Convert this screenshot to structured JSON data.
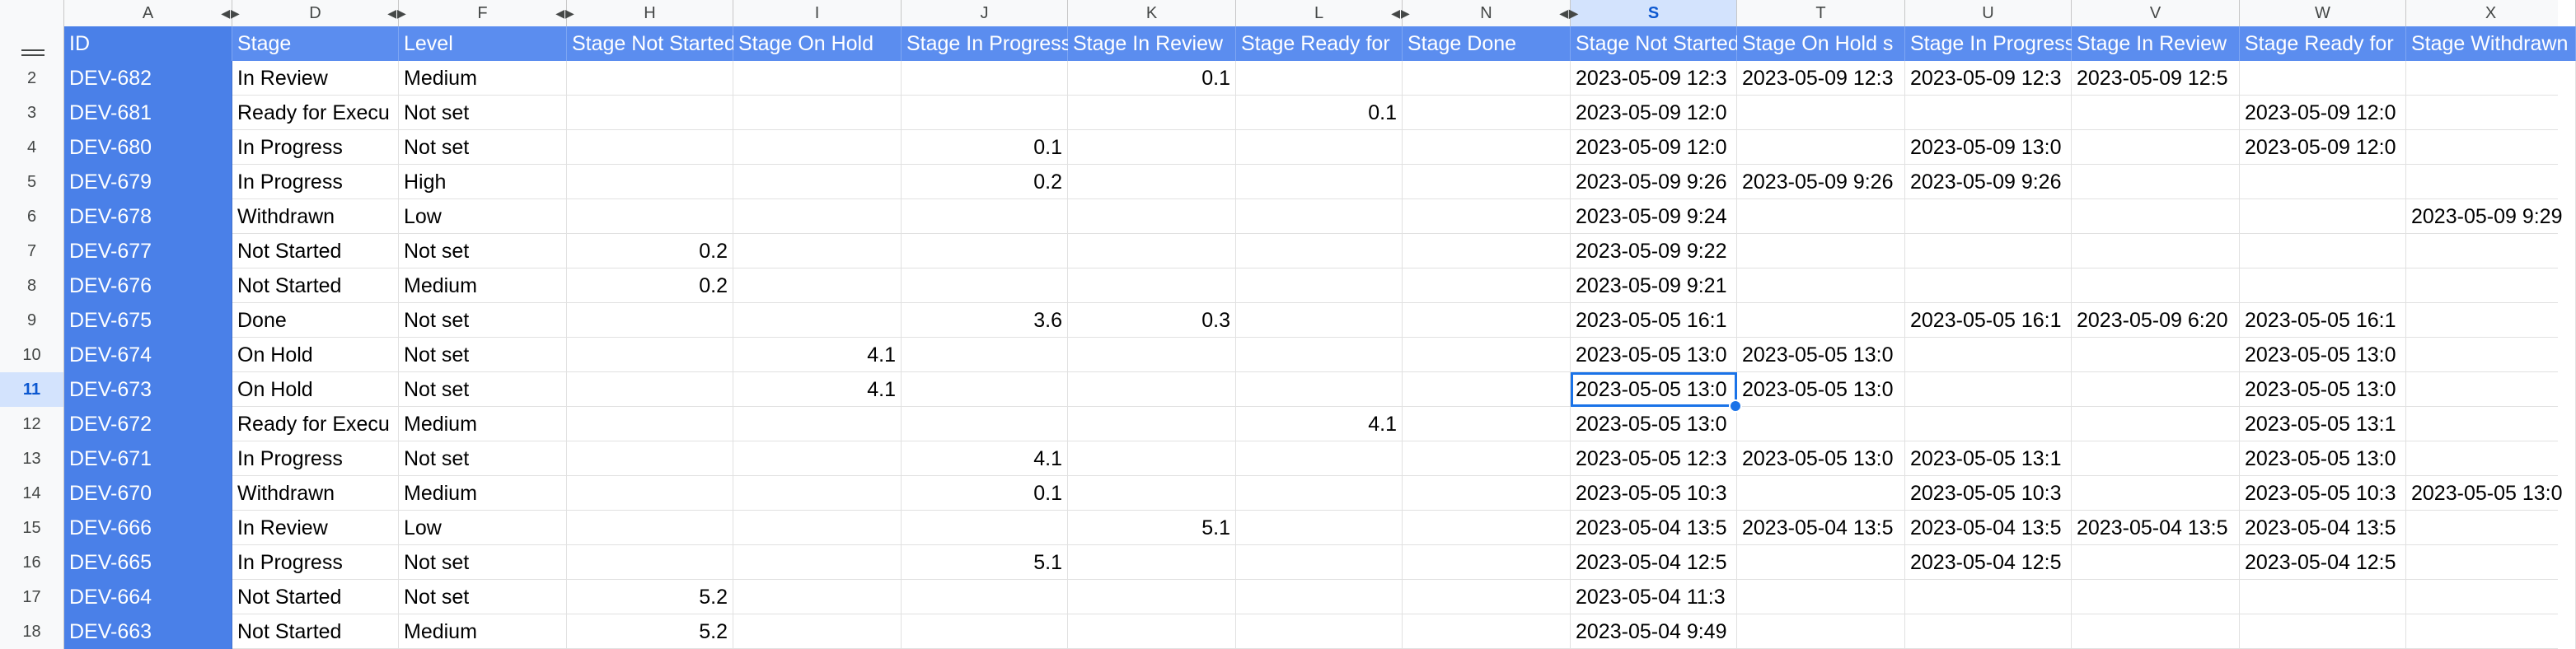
{
  "sheet": {
    "active_cell": "S11",
    "columns": [
      "A",
      "D",
      "F",
      "H",
      "I",
      "J",
      "K",
      "L",
      "N",
      "S",
      "T",
      "U",
      "V",
      "W",
      "X"
    ],
    "selected_column": "S",
    "selected_row": "11",
    "header_row": {
      "number": "1",
      "cells": [
        "ID",
        "Stage",
        "Level",
        "Stage Not Started",
        "Stage On Hold",
        "Stage In Progress",
        "Stage In Review",
        "Stage Ready for",
        "Stage Done",
        "Stage Not Started",
        "Stage On Hold s",
        "Stage In Progress",
        "Stage In Review",
        "Stage Ready for",
        "Stage Withdrawn"
      ]
    },
    "rows": [
      {
        "num": "2",
        "cells": [
          "DEV-682",
          "In Review",
          "Medium",
          "",
          "",
          "",
          "0.1",
          "",
          "",
          "2023-05-09 12:3",
          "2023-05-09 12:3",
          "2023-05-09 12:3",
          "2023-05-09 12:5",
          "",
          ""
        ]
      },
      {
        "num": "3",
        "cells": [
          "DEV-681",
          "Ready for Execu",
          "Not set",
          "",
          "",
          "",
          "",
          "0.1",
          "",
          "2023-05-09 12:0",
          "",
          "",
          "",
          "2023-05-09 12:0",
          ""
        ]
      },
      {
        "num": "4",
        "cells": [
          "DEV-680",
          "In Progress",
          "Not set",
          "",
          "",
          "0.1",
          "",
          "",
          "",
          "2023-05-09 12:0",
          "",
          "2023-05-09 13:0",
          "",
          "2023-05-09 12:0",
          ""
        ]
      },
      {
        "num": "5",
        "cells": [
          "DEV-679",
          "In Progress",
          "High",
          "",
          "",
          "0.2",
          "",
          "",
          "",
          "2023-05-09 9:26",
          "2023-05-09 9:26",
          "2023-05-09 9:26",
          "",
          "",
          ""
        ]
      },
      {
        "num": "6",
        "cells": [
          "DEV-678",
          "Withdrawn",
          "Low",
          "",
          "",
          "",
          "",
          "",
          "",
          "2023-05-09 9:24",
          "",
          "",
          "",
          "",
          "2023-05-09 9:29"
        ]
      },
      {
        "num": "7",
        "cells": [
          "DEV-677",
          "Not Started",
          "Not set",
          "0.2",
          "",
          "",
          "",
          "",
          "",
          "2023-05-09 9:22",
          "",
          "",
          "",
          "",
          ""
        ]
      },
      {
        "num": "8",
        "cells": [
          "DEV-676",
          "Not Started",
          "Medium",
          "0.2",
          "",
          "",
          "",
          "",
          "",
          "2023-05-09 9:21",
          "",
          "",
          "",
          "",
          ""
        ]
      },
      {
        "num": "9",
        "cells": [
          "DEV-675",
          "Done",
          "Not set",
          "",
          "",
          "3.6",
          "0.3",
          "",
          "",
          "2023-05-05 16:1",
          "",
          "2023-05-05 16:1",
          "2023-05-09 6:20",
          "2023-05-05 16:1",
          ""
        ]
      },
      {
        "num": "10",
        "cells": [
          "DEV-674",
          "On Hold",
          "Not set",
          "",
          "4.1",
          "",
          "",
          "",
          "",
          "2023-05-05 13:0",
          "2023-05-05 13:0",
          "",
          "",
          "2023-05-05 13:0",
          ""
        ]
      },
      {
        "num": "11",
        "cells": [
          "DEV-673",
          "On Hold",
          "Not set",
          "",
          "4.1",
          "",
          "",
          "",
          "",
          "2023-05-05 13:0",
          "2023-05-05 13:0",
          "",
          "",
          "2023-05-05 13:0",
          ""
        ]
      },
      {
        "num": "12",
        "cells": [
          "DEV-672",
          "Ready for Execu",
          "Medium",
          "",
          "",
          "",
          "",
          "4.1",
          "",
          "2023-05-05 13:0",
          "",
          "",
          "",
          "2023-05-05 13:1",
          ""
        ]
      },
      {
        "num": "13",
        "cells": [
          "DEV-671",
          "In Progress",
          "Not set",
          "",
          "",
          "4.1",
          "",
          "",
          "",
          "2023-05-05 12:3",
          "2023-05-05 13:0",
          "2023-05-05 13:1",
          "",
          "2023-05-05 13:0",
          ""
        ]
      },
      {
        "num": "14",
        "cells": [
          "DEV-670",
          "Withdrawn",
          "Medium",
          "",
          "",
          "0.1",
          "",
          "",
          "",
          "2023-05-05 10:3",
          "",
          "2023-05-05 10:3",
          "",
          "2023-05-05 10:3",
          "2023-05-05 13:0"
        ]
      },
      {
        "num": "15",
        "cells": [
          "DEV-666",
          "In Review",
          "Low",
          "",
          "",
          "",
          "5.1",
          "",
          "",
          "2023-05-04 13:5",
          "2023-05-04 13:5",
          "2023-05-04 13:5",
          "2023-05-04 13:5",
          "2023-05-04 13:5",
          ""
        ]
      },
      {
        "num": "16",
        "cells": [
          "DEV-665",
          "In Progress",
          "Not set",
          "",
          "",
          "5.1",
          "",
          "",
          "",
          "2023-05-04 12:5",
          "",
          "2023-05-04 12:5",
          "",
          "2023-05-04 12:5",
          ""
        ]
      },
      {
        "num": "17",
        "cells": [
          "DEV-664",
          "Not Started",
          "Not set",
          "5.2",
          "",
          "",
          "",
          "",
          "",
          "2023-05-04 11:3",
          "",
          "",
          "",
          "",
          ""
        ]
      },
      {
        "num": "18",
        "cells": [
          "DEV-663",
          "Not Started",
          "Medium",
          "5.2",
          "",
          "",
          "",
          "",
          "",
          "2023-05-04 9:49",
          "",
          "",
          "",
          "",
          ""
        ]
      }
    ]
  },
  "colors": {
    "header_fill": "#5b8def",
    "id_fill": "#4a80e8",
    "selection": "#1a73e8"
  }
}
